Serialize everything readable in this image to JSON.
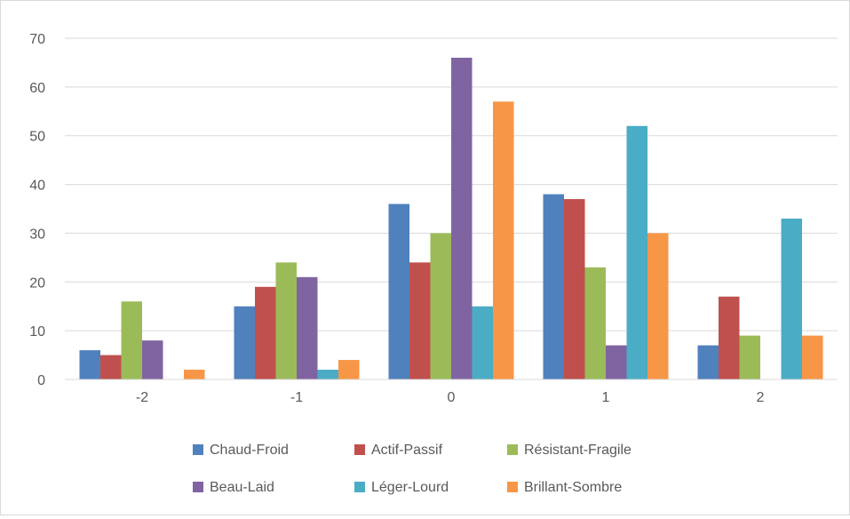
{
  "chart_data": {
    "type": "bar",
    "title": "",
    "xlabel": "",
    "ylabel": "",
    "categories": [
      "-2",
      "-1",
      "0",
      "1",
      "2"
    ],
    "ylim": [
      0,
      70
    ],
    "y_ticks": [
      "0",
      "10",
      "20",
      "30",
      "40",
      "50",
      "60",
      "70"
    ],
    "grid": true,
    "legend_position": "bottom",
    "series": [
      {
        "name": "Chaud-Froid",
        "color": "#4f81bd",
        "values": [
          6,
          15,
          36,
          38,
          7
        ]
      },
      {
        "name": "Actif-Passif",
        "color": "#c0504d",
        "values": [
          5,
          19,
          24,
          37,
          17
        ]
      },
      {
        "name": "Résistant-Fragile",
        "color": "#9bbb59",
        "values": [
          16,
          24,
          30,
          23,
          9
        ]
      },
      {
        "name": "Beau-Laid",
        "color": "#8064a2",
        "values": [
          8,
          21,
          66,
          7,
          0
        ]
      },
      {
        "name": "Léger-Lourd",
        "color": "#4bacc6",
        "values": [
          0,
          2,
          15,
          52,
          33
        ]
      },
      {
        "name": "Brillant-Sombre",
        "color": "#f79646",
        "values": [
          2,
          4,
          57,
          30,
          9
        ]
      }
    ]
  }
}
